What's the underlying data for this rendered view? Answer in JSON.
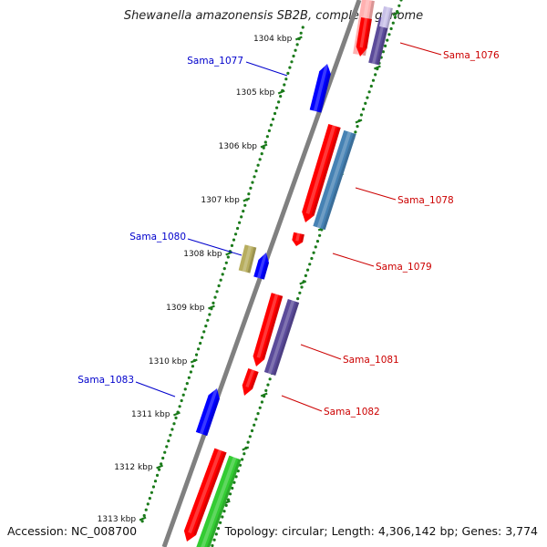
{
  "title": "Shewanella amazonensis SB2B, complete genome",
  "footer": {
    "accession": "Accession: NC_008700",
    "info": "Topology: circular; Length: 4,306,142 bp; Genes: 3,774"
  },
  "colors": {
    "backbone": "#808080",
    "forward_cds": "#ff0000",
    "reverse_cds": "#0000ff",
    "forward_label": "#cc0000",
    "reverse_label": "#0000cc",
    "purple": "#5b4b9a",
    "steel_blue": "#4682b4",
    "khaki": "#b7ad5e",
    "green": "#33cc33",
    "pink": "#ffb0b0",
    "lavender": "#c8c0e8",
    "tick_dash": "#1a7a1a"
  },
  "axis": {
    "ticks": [
      {
        "label": "1304 kbp"
      },
      {
        "label": "1305 kbp"
      },
      {
        "label": "1306 kbp"
      },
      {
        "label": "1307 kbp"
      },
      {
        "label": "1308 kbp"
      },
      {
        "label": "1309 kbp"
      },
      {
        "label": "1310 kbp"
      },
      {
        "label": "1311 kbp"
      },
      {
        "label": "1312 kbp"
      },
      {
        "label": "1313 kbp"
      }
    ]
  },
  "gene_labels": [
    {
      "name": "Sama_1076",
      "strand": "forward"
    },
    {
      "name": "Sama_1077",
      "strand": "reverse"
    },
    {
      "name": "Sama_1078",
      "strand": "forward"
    },
    {
      "name": "Sama_1079",
      "strand": "forward"
    },
    {
      "name": "Sama_1080",
      "strand": "reverse"
    },
    {
      "name": "Sama_1081",
      "strand": "forward"
    },
    {
      "name": "Sama_1082",
      "strand": "forward"
    },
    {
      "name": "Sama_1083",
      "strand": "reverse"
    }
  ]
}
